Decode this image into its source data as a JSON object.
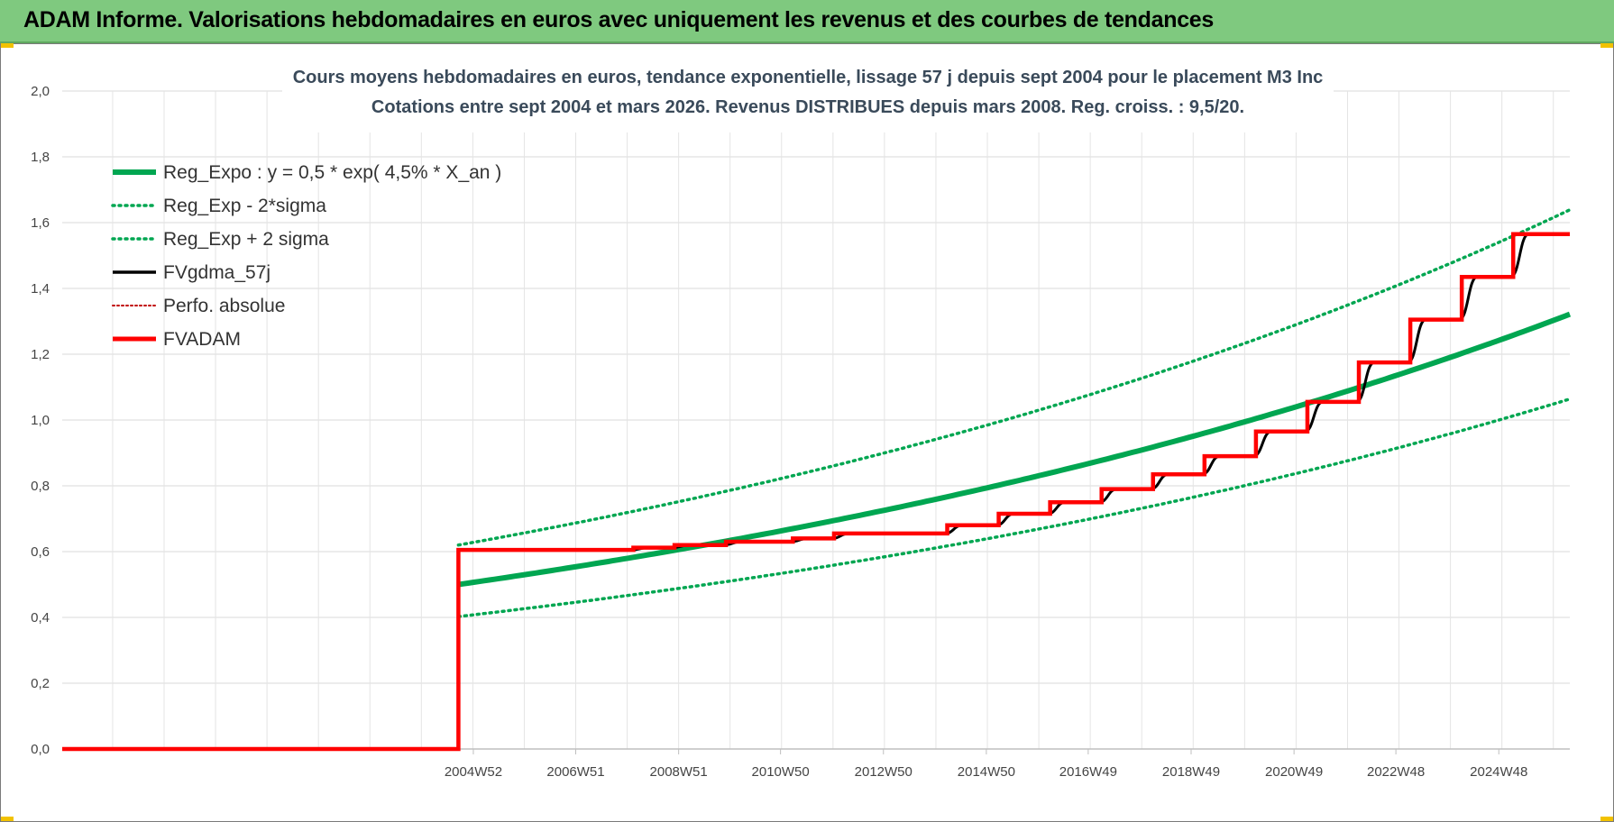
{
  "header": {
    "title": "ADAM Informe. Valorisations hebdomadaires en euros avec uniquement les revenus et des courbes de tendances"
  },
  "colors": {
    "green": "#00a651",
    "black": "#000000",
    "red": "#ff0000",
    "dark_red": "#c00000",
    "header_bg": "#7fc97f"
  },
  "chart_data": {
    "type": "line",
    "title": "Cours moyens hebdomadaires en euros, tendance exponentielle, lissage 57 j depuis sept 2004 pour le placement M3 Inc",
    "subtitle": "Cotations entre sept 2004 et mars 2026. Revenus DISTRIBUES depuis mars 2008. Reg. croiss. : 9,5/20.",
    "xlabel": "",
    "ylabel": "",
    "ylim": [
      0,
      2
    ],
    "yticks": [
      "0,0",
      "0,2",
      "0,4",
      "0,6",
      "0,8",
      "1,0",
      "1,2",
      "1,4",
      "1,6",
      "1,8",
      "2,0"
    ],
    "xlim": [
      1997,
      2026.3
    ],
    "xticks": [
      {
        "label": "2004W52",
        "year": 2004.99
      },
      {
        "label": "2006W51",
        "year": 2006.98
      },
      {
        "label": "2008W51",
        "year": 2008.98
      },
      {
        "label": "2010W50",
        "year": 2010.96
      },
      {
        "label": "2012W50",
        "year": 2012.96
      },
      {
        "label": "2014W50",
        "year": 2014.96
      },
      {
        "label": "2016W49",
        "year": 2016.94
      },
      {
        "label": "2018W49",
        "year": 2018.94
      },
      {
        "label": "2020W49",
        "year": 2020.94
      },
      {
        "label": "2022W48",
        "year": 2022.92
      },
      {
        "label": "2024W48",
        "year": 2024.92
      }
    ],
    "grid": true,
    "legend_position": "top-left",
    "trend": {
      "start_year": 2004.7,
      "base": 0.5,
      "rate": 0.045,
      "lower_factor": 0.805,
      "upper_factor": 1.24
    },
    "series": [
      {
        "name": "Reg_Expo : y = 0,5 * exp( 4,5% *  X_an )",
        "style": "solid-thick",
        "color": "#00a651",
        "points": [
          [
            2004.7,
            0.5
          ],
          [
            2008,
            0.58
          ],
          [
            2010,
            0.635
          ],
          [
            2012,
            0.695
          ],
          [
            2014,
            0.76
          ],
          [
            2016,
            0.83
          ],
          [
            2018,
            0.91
          ],
          [
            2020,
            0.995
          ],
          [
            2022,
            1.09
          ],
          [
            2024,
            1.19
          ],
          [
            2026.3,
            1.31
          ]
        ]
      },
      {
        "name": "Reg_Exp - 2*sigma",
        "style": "dotted",
        "color": "#00a651",
        "points": [
          [
            2004.7,
            0.4
          ],
          [
            2008,
            0.465
          ],
          [
            2010,
            0.51
          ],
          [
            2012,
            0.56
          ],
          [
            2014,
            0.61
          ],
          [
            2016,
            0.67
          ],
          [
            2018,
            0.73
          ],
          [
            2020,
            0.8
          ],
          [
            2022,
            0.88
          ],
          [
            2024,
            0.96
          ],
          [
            2026.3,
            1.05
          ]
        ]
      },
      {
        "name": "Reg_Exp + 2 sigma",
        "style": "dotted",
        "color": "#00a651",
        "points": [
          [
            2004.7,
            0.62
          ],
          [
            2008,
            0.72
          ],
          [
            2010,
            0.79
          ],
          [
            2012,
            0.86
          ],
          [
            2014,
            0.94
          ],
          [
            2016,
            1.03
          ],
          [
            2018,
            1.13
          ],
          [
            2020,
            1.24
          ],
          [
            2022,
            1.35
          ],
          [
            2024,
            1.48
          ],
          [
            2026.3,
            1.62
          ]
        ]
      },
      {
        "name": "FVgdma_57j",
        "style": "solid",
        "color": "#000000"
      },
      {
        "name": "Perfo. absolue",
        "style": "dotted",
        "color": "#c00000"
      },
      {
        "name": "FVADAM",
        "style": "solid-thick",
        "color": "#ff0000",
        "steps": [
          [
            1997,
            0.0
          ],
          [
            2004.7,
            0.605
          ],
          [
            2008.1,
            0.612
          ],
          [
            2008.9,
            0.62
          ],
          [
            2009.9,
            0.63
          ],
          [
            2011.2,
            0.64
          ],
          [
            2012.0,
            0.655
          ],
          [
            2014.2,
            0.68
          ],
          [
            2015.2,
            0.715
          ],
          [
            2016.2,
            0.75
          ],
          [
            2017.2,
            0.79
          ],
          [
            2018.2,
            0.835
          ],
          [
            2019.2,
            0.89
          ],
          [
            2020.2,
            0.965
          ],
          [
            2021.2,
            1.055
          ],
          [
            2022.2,
            1.175
          ],
          [
            2023.2,
            1.305
          ],
          [
            2024.2,
            1.435
          ],
          [
            2025.2,
            1.565
          ]
        ],
        "end_year": 2026.3
      }
    ]
  }
}
